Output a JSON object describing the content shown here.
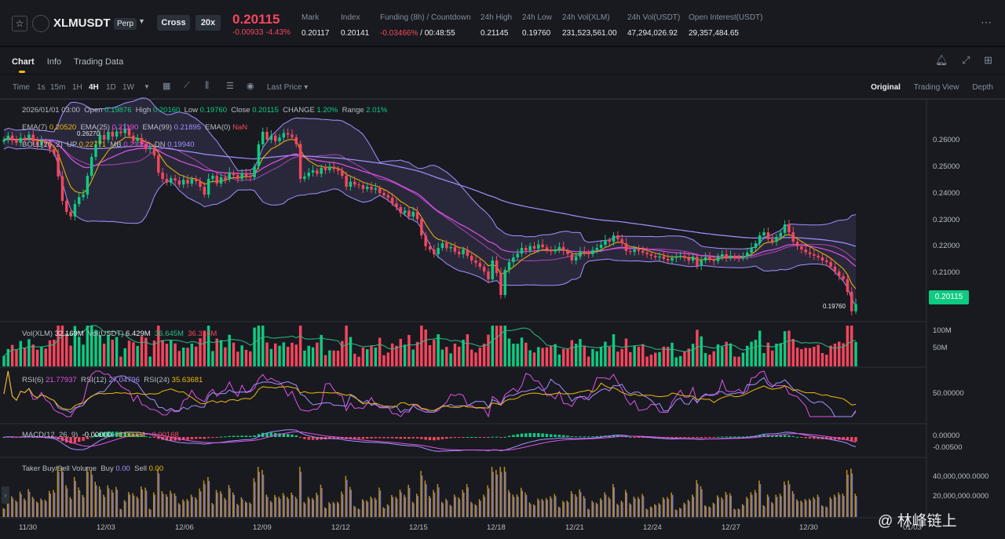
{
  "header": {
    "symbol": "XLMUSDT",
    "contract_type": "Perp",
    "margin_mode": "Cross",
    "leverage": "20x",
    "last_price": "0.20115",
    "change": "-0.00933 -4.43%",
    "stats": [
      {
        "label": "Mark",
        "value": "0.20117"
      },
      {
        "label": "Index",
        "value": "0.20141"
      },
      {
        "label": "Funding (8h) / Countdown",
        "value_red": "-0.03466%",
        "value": " / 00:48:55"
      },
      {
        "label": "24h High",
        "value": "0.21145"
      },
      {
        "label": "24h Low",
        "value": "0.19760"
      },
      {
        "label": "24h Vol(XLM)",
        "value": "231,523,561.00"
      },
      {
        "label": "24h Vol(USDT)",
        "value": "47,294,026.92"
      },
      {
        "label": "Open Interest(USDT)",
        "value": "29,357,484.65"
      }
    ]
  },
  "tabs": [
    "Chart",
    "Info",
    "Trading Data"
  ],
  "toolbar": {
    "time_label": "Time",
    "timeframes": [
      "1s",
      "15m",
      "1H",
      "4H",
      "1D",
      "1W"
    ],
    "active_timeframe": "4H",
    "price_type": "Last Price",
    "views": [
      "Original",
      "Trading View",
      "Depth"
    ],
    "active_view": "Original"
  },
  "legend": {
    "ohlc_line": {
      "date": "2026/01/01 03:00",
      "open_label": "Open",
      "open": "0.19876",
      "high_label": "High",
      "high": "0.20160",
      "low_label": "Low",
      "low": "0.19760",
      "close_label": "Close",
      "close": "0.20115",
      "change_label": "CHANGE",
      "change": "1.20%",
      "range_label": "Range",
      "range": "2.01%"
    },
    "ema": {
      "ema7_label": "EMA(7)",
      "ema7": "0.20520",
      "ema25_label": "EMA(25)",
      "ema25": "0.21190",
      "ema99_label": "EMA(99)",
      "ema99": "0.21895",
      "ema0_label": "EMA(0)",
      "ema0": "NaN"
    },
    "boll": {
      "label": "BOLL(20, 2)",
      "up_label": "UP",
      "up": "0.22771",
      "mb_label": "MB",
      "mb": "0.21356",
      "dn_label": "DN",
      "dn": "0.19940"
    },
    "vol": {
      "xlm_label": "Vol(XLM)",
      "xlm": "32.169M",
      "usdt_label": "Vol(USDT)",
      "usdt": "6.429M",
      "ma1": "36.645M",
      "ma2": "36.316M"
    },
    "rsi": {
      "rsi6_label": "RSI(6)",
      "rsi6": "21.77937",
      "rsi12_label": "RSI(12)",
      "rsi12": "27.04796",
      "rsi24_label": "RSI(24)",
      "rsi24": "35.63681"
    },
    "macd": {
      "label": "MACD(12, 26, 9)",
      "v1": "-0.00000",
      "v2": "-0.00004",
      "v3": "-0.00168"
    },
    "taker": {
      "label": "Taker Buy/Sell Volume",
      "buy_label": "Buy",
      "buy": "0.00",
      "sell_label": "Sell",
      "sell": "0.00"
    }
  },
  "axes": {
    "price_ticks": [
      "0.26000",
      "0.25000",
      "0.24000",
      "0.23000",
      "0.22000",
      "0.21000"
    ],
    "current_price": "0.20115",
    "high_marker": "0.26270",
    "low_marker": "0.19760",
    "vol_ticks": [
      "100M",
      "50M"
    ],
    "rsi_ticks": [
      "50.00000"
    ],
    "macd_ticks": [
      "0.00000",
      "-0.00500"
    ],
    "taker_ticks": [
      "40,000,000.0000",
      "20,000,000.0000"
    ],
    "dates": [
      "11/30",
      "12/03",
      "12/06",
      "12/09",
      "12/12",
      "12/15",
      "12/18",
      "12/21",
      "12/24",
      "12/27",
      "12/30",
      "01/03"
    ]
  },
  "watermark": "@ 林峰链上",
  "colors": {
    "up": "#0ecb81",
    "down": "#f6465d",
    "ema7": "#f0b90b",
    "ema25": "#e052e7",
    "ema99": "#a391ff",
    "boll": "#a391ff"
  },
  "chart_data": {
    "type": "candlestick",
    "timeframe": "4H",
    "price_range": [
      0.196,
      0.266
    ],
    "closes": [
      0.2535,
      0.2548,
      0.2532,
      0.2525,
      0.2541,
      0.2538,
      0.2551,
      0.2529,
      0.2517,
      0.253,
      0.2522,
      0.2505,
      0.249,
      0.2418,
      0.234,
      0.2305,
      0.229,
      0.233,
      0.2352,
      0.236,
      0.242,
      0.248,
      0.252,
      0.255,
      0.2535,
      0.256,
      0.2545,
      0.2561,
      0.2556,
      0.257,
      0.2548,
      0.2531,
      0.254,
      0.252,
      0.2505,
      0.251,
      0.2485,
      0.243,
      0.241,
      0.2398,
      0.2412,
      0.2405,
      0.2392,
      0.2407,
      0.2395,
      0.241,
      0.2402,
      0.2385,
      0.236,
      0.241,
      0.242,
      0.2395,
      0.2415,
      0.2408,
      0.243,
      0.2422,
      0.241,
      0.2428,
      0.2419,
      0.2415,
      0.245,
      0.252,
      0.256,
      0.2535,
      0.2548,
      0.253,
      0.2542,
      0.2556,
      0.2551,
      0.2543,
      0.2521,
      0.241,
      0.2418,
      0.243,
      0.2437,
      0.2426,
      0.2445,
      0.2438,
      0.2449,
      0.2441,
      0.2436,
      0.242,
      0.2385,
      0.2401,
      0.2392,
      0.239,
      0.2378,
      0.2385,
      0.2376,
      0.238,
      0.2365,
      0.2358,
      0.235,
      0.2332,
      0.232,
      0.2301,
      0.2309,
      0.229,
      0.2305,
      0.2282,
      0.223,
      0.2195,
      0.2185,
      0.217,
      0.219,
      0.2205,
      0.2189,
      0.2193,
      0.2178,
      0.217,
      0.2185,
      0.2165,
      0.215,
      0.2142,
      0.213,
      0.2115,
      0.209,
      0.215,
      0.211,
      0.204,
      0.212,
      0.2145,
      0.216,
      0.2172,
      0.219,
      0.2182,
      0.2196,
      0.2188,
      0.2201,
      0.2192,
      0.2185,
      0.2179,
      0.2185,
      0.2193,
      0.218,
      0.217,
      0.215,
      0.2162,
      0.2178,
      0.2175,
      0.217,
      0.2183,
      0.219,
      0.22,
      0.2215,
      0.221,
      0.223,
      0.2218,
      0.2205,
      0.218,
      0.2177,
      0.2186,
      0.2181,
      0.2175,
      0.217,
      0.2165,
      0.216,
      0.2163,
      0.2155,
      0.215,
      0.2158,
      0.2162,
      0.2165,
      0.2158,
      0.215,
      0.2162,
      0.2133,
      0.215,
      0.216,
      0.2155,
      0.2148,
      0.2162,
      0.217,
      0.2158,
      0.2165,
      0.216,
      0.2158,
      0.2163,
      0.2175,
      0.219,
      0.2205,
      0.223,
      0.224,
      0.2218,
      0.221,
      0.2225,
      0.2238,
      0.2265,
      0.224,
      0.221,
      0.2195,
      0.2185,
      0.2176,
      0.217,
      0.2165,
      0.216,
      0.215,
      0.2145,
      0.213,
      0.2115,
      0.21,
      0.209,
      0.205,
      0.1988,
      0.2011
    ],
    "annotations": [
      "0.26270",
      "0.19760"
    ]
  }
}
